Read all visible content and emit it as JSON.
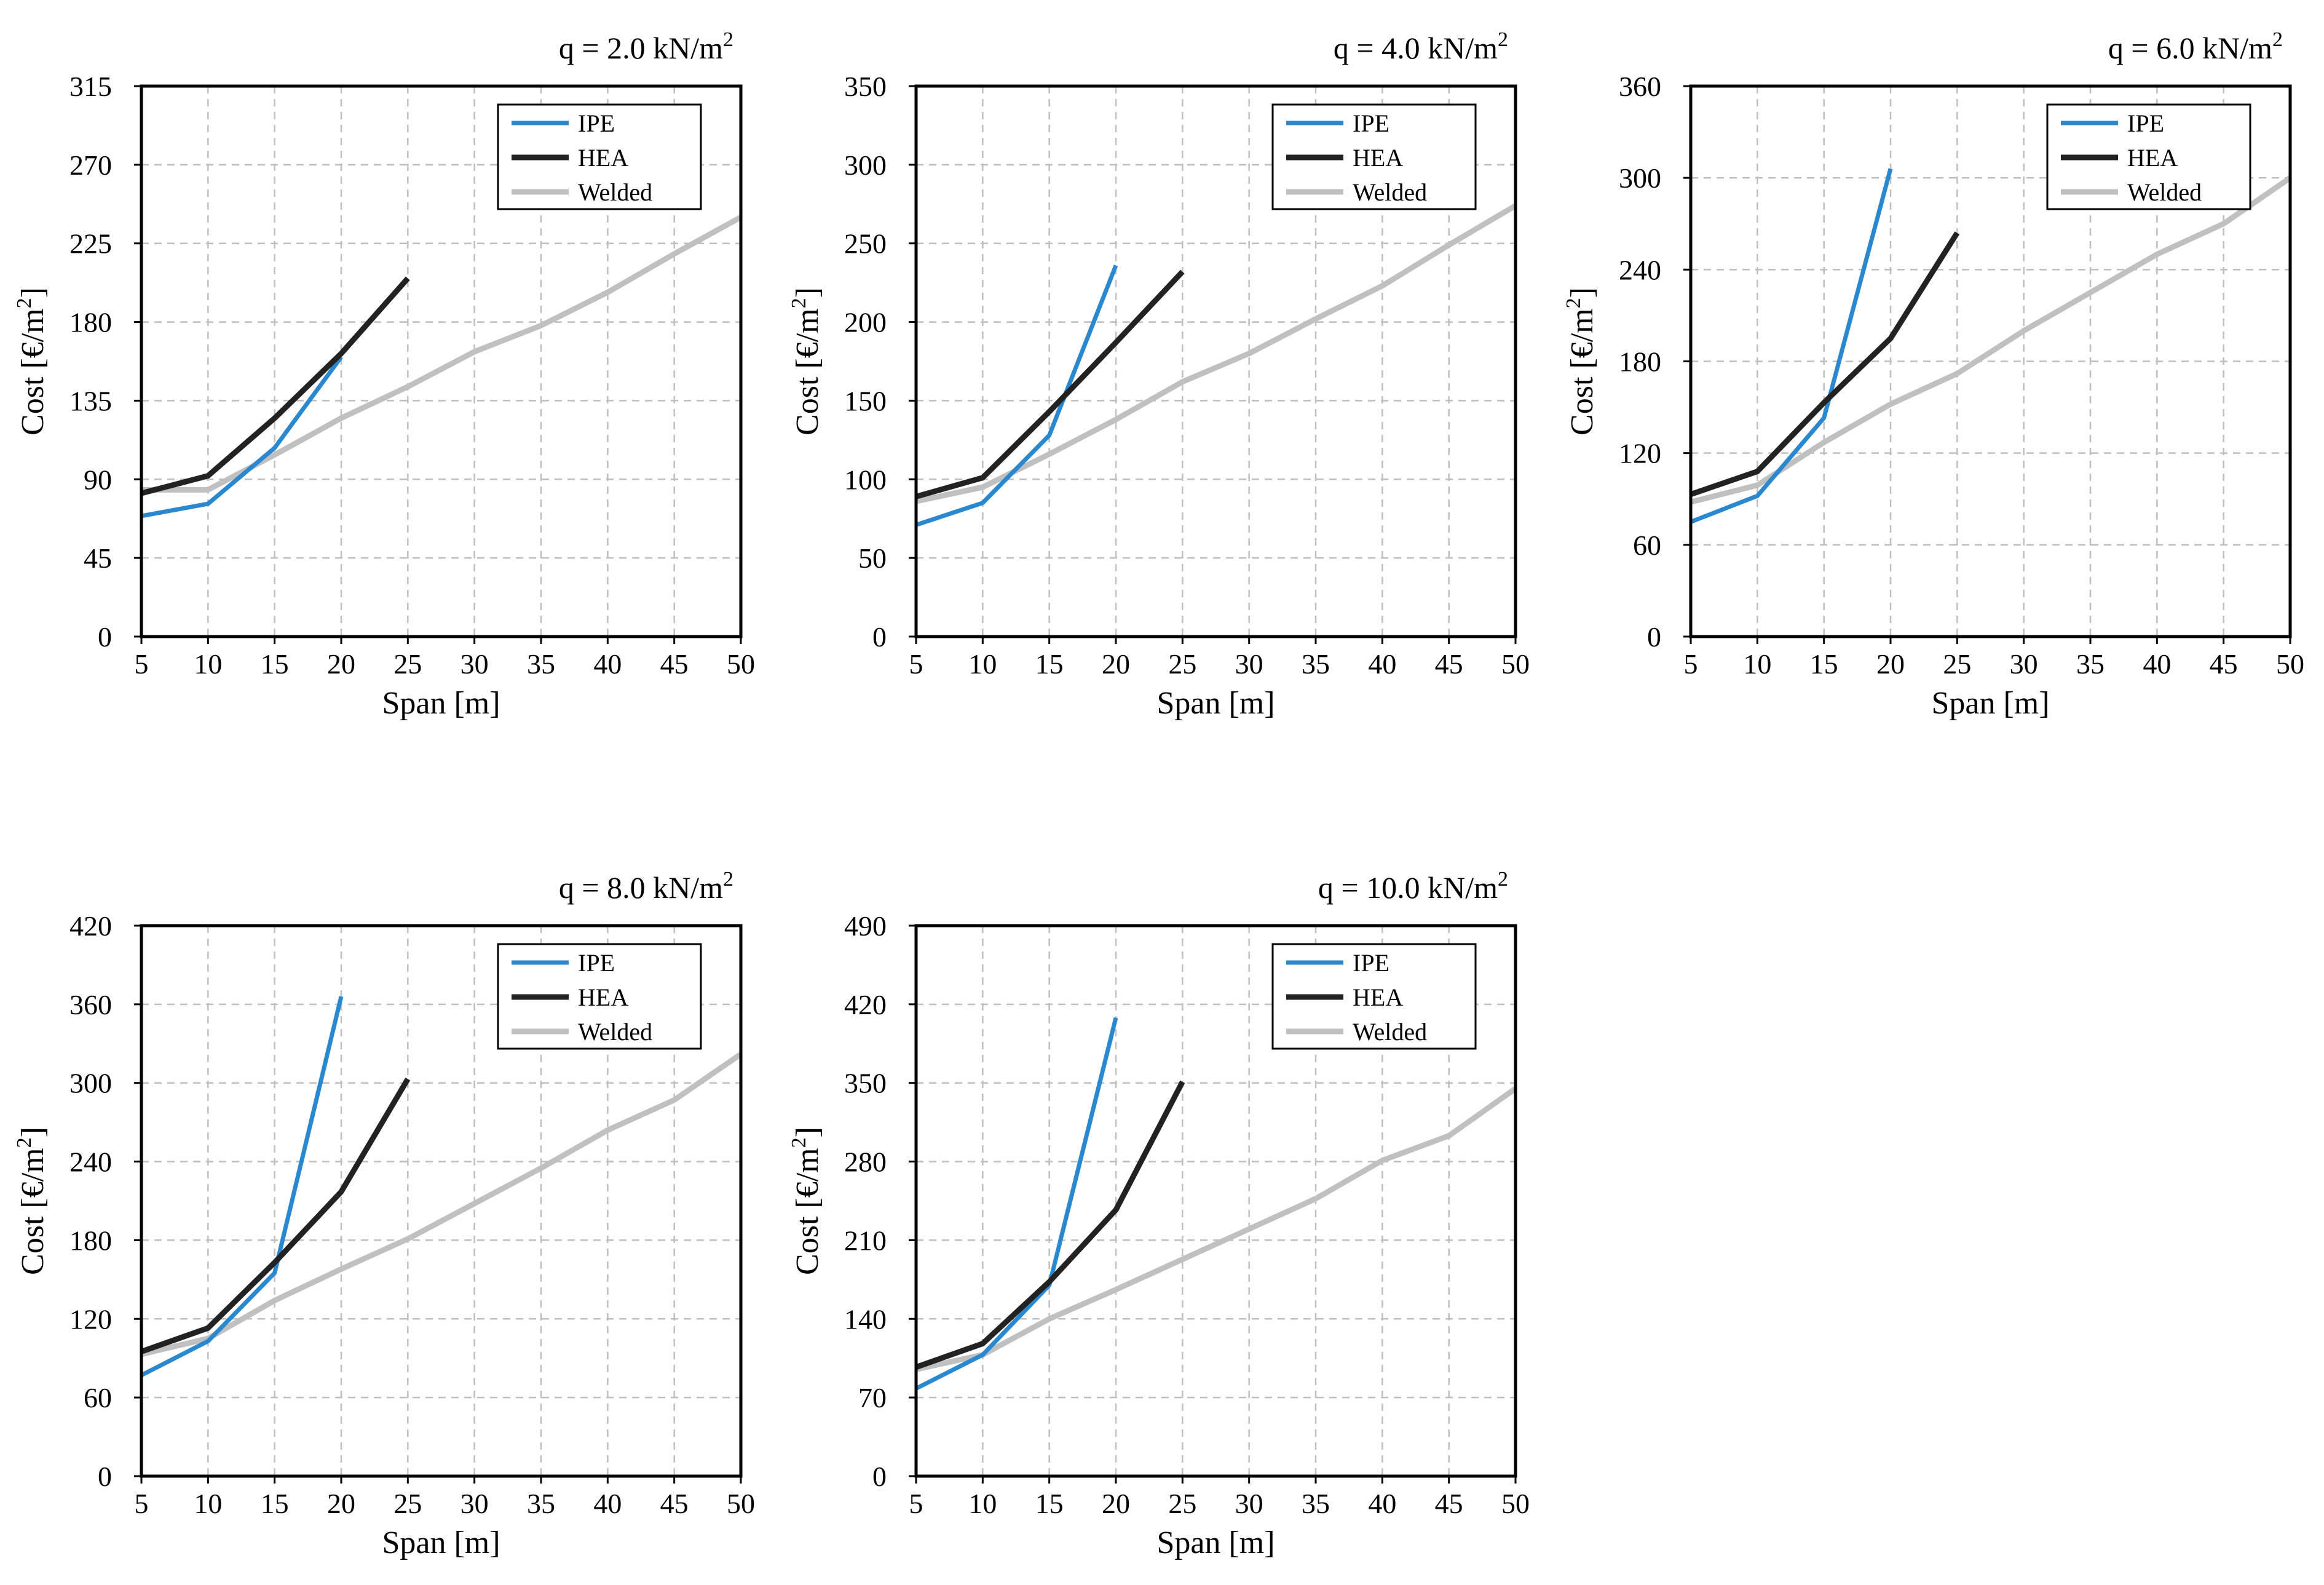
{
  "colors": {
    "IPE": "#2a88d0",
    "HEA": "#222222",
    "Welded": "#c0c0c0",
    "grid": "#bfbfbf",
    "frame": "#000000"
  },
  "chart_data": [
    {
      "type": "line",
      "title": "q = 2.0 kN/m²",
      "title_prefix": "q = 2.0 kN/m",
      "title_sup": "2",
      "xlabel": "Span [m]",
      "ylabel_prefix": "Cost [€/m",
      "ylabel_sup": "2",
      "ylabel_suffix": "]",
      "xlim": [
        5,
        50
      ],
      "ylim": [
        0,
        315
      ],
      "xticks": [
        5,
        10,
        15,
        20,
        25,
        30,
        35,
        40,
        45,
        50
      ],
      "yticks": [
        0,
        45,
        90,
        135,
        180,
        225,
        270,
        315
      ],
      "grid": true,
      "legend_position": "top-right",
      "series": [
        {
          "name": "IPE",
          "x": [
            5,
            10,
            15,
            20
          ],
          "y": [
            69,
            76,
            108,
            160
          ]
        },
        {
          "name": "HEA",
          "x": [
            5,
            10,
            15,
            20,
            25
          ],
          "y": [
            82,
            92,
            125,
            162,
            205
          ]
        },
        {
          "name": "Welded",
          "x": [
            5,
            10,
            15,
            20,
            25,
            30,
            35,
            40,
            45,
            50
          ],
          "y": [
            84,
            84,
            104,
            125,
            143,
            163,
            178,
            197,
            219,
            240
          ]
        }
      ]
    },
    {
      "type": "line",
      "title": "q = 4.0 kN/m²",
      "title_prefix": "q = 4.0 kN/m",
      "title_sup": "2",
      "xlabel": "Span [m]",
      "ylabel_prefix": "Cost [€/m",
      "ylabel_sup": "2",
      "ylabel_suffix": "]",
      "xlim": [
        5,
        50
      ],
      "ylim": [
        0,
        350
      ],
      "xticks": [
        5,
        10,
        15,
        20,
        25,
        30,
        35,
        40,
        45,
        50
      ],
      "yticks": [
        0,
        50,
        100,
        150,
        200,
        250,
        300,
        350
      ],
      "grid": true,
      "legend_position": "top-right",
      "series": [
        {
          "name": "IPE",
          "x": [
            5,
            10,
            15,
            20
          ],
          "y": [
            71,
            85,
            128,
            236
          ]
        },
        {
          "name": "HEA",
          "x": [
            5,
            10,
            15,
            20,
            25
          ],
          "y": [
            89,
            101,
            143,
            187,
            232
          ]
        },
        {
          "name": "Welded",
          "x": [
            5,
            10,
            15,
            20,
            25,
            30,
            35,
            40,
            45,
            50
          ],
          "y": [
            86,
            95,
            116,
            138,
            162,
            180,
            202,
            223,
            249,
            274
          ]
        }
      ]
    },
    {
      "type": "line",
      "title": "q = 6.0 kN/m²",
      "title_prefix": "q = 6.0 kN/m",
      "title_sup": "2",
      "xlabel": "Span [m]",
      "ylabel_prefix": "Cost [€/m",
      "ylabel_sup": "2",
      "ylabel_suffix": "]",
      "xlim": [
        5,
        50
      ],
      "ylim": [
        0,
        360
      ],
      "xticks": [
        5,
        10,
        15,
        20,
        25,
        30,
        35,
        40,
        45,
        50
      ],
      "yticks": [
        0,
        60,
        120,
        180,
        240,
        300,
        360
      ],
      "grid": true,
      "legend_position": "top-right",
      "series": [
        {
          "name": "IPE",
          "x": [
            5,
            10,
            15,
            20
          ],
          "y": [
            75,
            92,
            143,
            306
          ]
        },
        {
          "name": "HEA",
          "x": [
            5,
            10,
            15,
            20,
            25
          ],
          "y": [
            93,
            108,
            153,
            195,
            264
          ]
        },
        {
          "name": "Welded",
          "x": [
            5,
            10,
            15,
            20,
            25,
            30,
            35,
            40,
            45,
            50
          ],
          "y": [
            88,
            99,
            127,
            152,
            172,
            200,
            225,
            250,
            270,
            300
          ]
        }
      ]
    },
    {
      "type": "line",
      "title": "q = 8.0 kN/m²",
      "title_prefix": "q = 8.0 kN/m",
      "title_sup": "2",
      "xlabel": "Span [m]",
      "ylabel_prefix": "Cost [€/m",
      "ylabel_sup": "2",
      "ylabel_suffix": "]",
      "xlim": [
        5,
        50
      ],
      "ylim": [
        0,
        420
      ],
      "xticks": [
        5,
        10,
        15,
        20,
        25,
        30,
        35,
        40,
        45,
        50
      ],
      "yticks": [
        0,
        60,
        120,
        180,
        240,
        300,
        360,
        420
      ],
      "grid": true,
      "legend_position": "top-right",
      "series": [
        {
          "name": "IPE",
          "x": [
            5,
            10,
            15,
            20
          ],
          "y": [
            77,
            103,
            155,
            366
          ]
        },
        {
          "name": "HEA",
          "x": [
            5,
            10,
            15,
            20,
            25
          ],
          "y": [
            95,
            113,
            163,
            217,
            303
          ]
        },
        {
          "name": "Welded",
          "x": [
            5,
            10,
            15,
            20,
            25,
            30,
            35,
            40,
            45,
            50
          ],
          "y": [
            93,
            105,
            134,
            158,
            181,
            208,
            235,
            264,
            287,
            322
          ]
        }
      ]
    },
    {
      "type": "line",
      "title": "q = 10.0 kN/m²",
      "title_prefix": "q = 10.0 kN/m",
      "title_sup": "2",
      "xlabel": "Span [m]",
      "ylabel_prefix": "Cost [€/m",
      "ylabel_sup": "2",
      "ylabel_suffix": "]",
      "xlim": [
        5,
        50
      ],
      "ylim": [
        0,
        490
      ],
      "xticks": [
        5,
        10,
        15,
        20,
        25,
        30,
        35,
        40,
        45,
        50
      ],
      "yticks": [
        0,
        70,
        140,
        210,
        280,
        350,
        420,
        490
      ],
      "grid": true,
      "legend_position": "top-right",
      "series": [
        {
          "name": "IPE",
          "x": [
            5,
            10,
            15,
            20
          ],
          "y": [
            78,
            108,
            170,
            408
          ]
        },
        {
          "name": "HEA",
          "x": [
            5,
            10,
            15,
            20,
            25
          ],
          "y": [
            97,
            118,
            173,
            237,
            351
          ]
        },
        {
          "name": "Welded",
          "x": [
            5,
            10,
            15,
            20,
            25,
            30,
            35,
            40,
            45,
            50
          ],
          "y": [
            95,
            108,
            140,
            166,
            193,
            220,
            247,
            281,
            303,
            345
          ]
        }
      ]
    }
  ]
}
